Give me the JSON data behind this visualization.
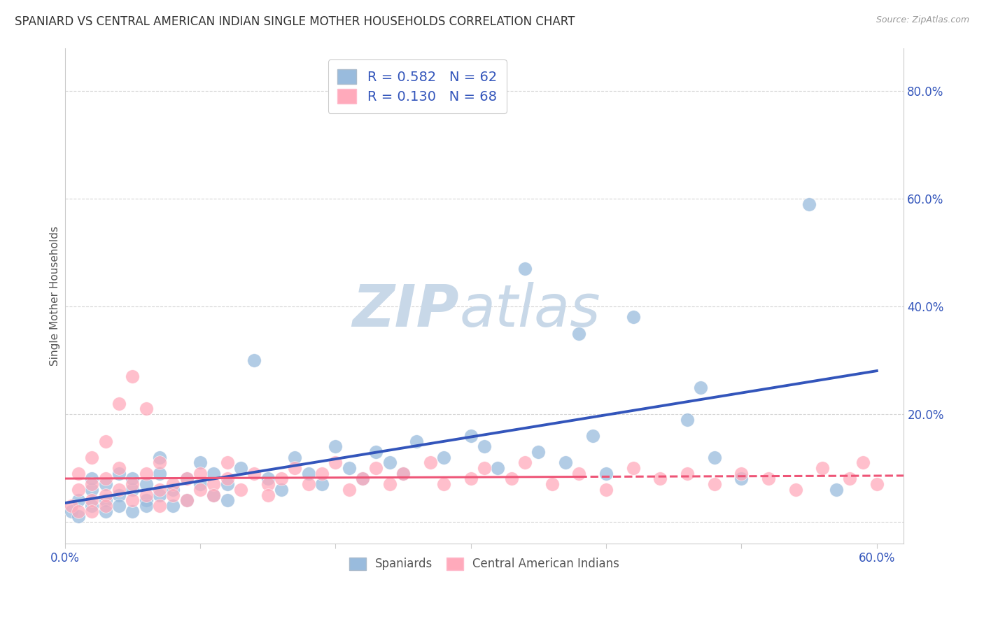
{
  "title": "SPANIARD VS CENTRAL AMERICAN INDIAN SINGLE MOTHER HOUSEHOLDS CORRELATION CHART",
  "source": "Source: ZipAtlas.com",
  "ylabel": "Single Mother Households",
  "xlim": [
    0.0,
    0.62
  ],
  "ylim": [
    -0.04,
    0.88
  ],
  "spaniard_R": 0.582,
  "spaniard_N": 62,
  "central_R": 0.13,
  "central_N": 68,
  "blue_color": "#99BBDD",
  "pink_color": "#FFAABB",
  "blue_line_color": "#3355BB",
  "pink_line_color": "#EE5577",
  "blue_text_color": "#3355BB",
  "background_color": "#FFFFFF",
  "watermark_color": "#C8D8E8",
  "grid_color": "#CCCCCC",
  "spaniard_scatter": [
    [
      0.005,
      0.02
    ],
    [
      0.01,
      0.04
    ],
    [
      0.01,
      0.01
    ],
    [
      0.02,
      0.06
    ],
    [
      0.02,
      0.03
    ],
    [
      0.02,
      0.08
    ],
    [
      0.03,
      0.04
    ],
    [
      0.03,
      0.07
    ],
    [
      0.03,
      0.02
    ],
    [
      0.04,
      0.05
    ],
    [
      0.04,
      0.09
    ],
    [
      0.04,
      0.03
    ],
    [
      0.05,
      0.06
    ],
    [
      0.05,
      0.02
    ],
    [
      0.05,
      0.08
    ],
    [
      0.06,
      0.04
    ],
    [
      0.06,
      0.07
    ],
    [
      0.06,
      0.03
    ],
    [
      0.07,
      0.05
    ],
    [
      0.07,
      0.09
    ],
    [
      0.07,
      0.12
    ],
    [
      0.08,
      0.06
    ],
    [
      0.08,
      0.03
    ],
    [
      0.09,
      0.08
    ],
    [
      0.09,
      0.04
    ],
    [
      0.1,
      0.07
    ],
    [
      0.1,
      0.11
    ],
    [
      0.11,
      0.05
    ],
    [
      0.11,
      0.09
    ],
    [
      0.12,
      0.07
    ],
    [
      0.12,
      0.04
    ],
    [
      0.13,
      0.1
    ],
    [
      0.14,
      0.3
    ],
    [
      0.15,
      0.08
    ],
    [
      0.16,
      0.06
    ],
    [
      0.17,
      0.12
    ],
    [
      0.18,
      0.09
    ],
    [
      0.19,
      0.07
    ],
    [
      0.2,
      0.14
    ],
    [
      0.21,
      0.1
    ],
    [
      0.22,
      0.08
    ],
    [
      0.23,
      0.13
    ],
    [
      0.24,
      0.11
    ],
    [
      0.25,
      0.09
    ],
    [
      0.26,
      0.15
    ],
    [
      0.28,
      0.12
    ],
    [
      0.3,
      0.16
    ],
    [
      0.31,
      0.14
    ],
    [
      0.32,
      0.1
    ],
    [
      0.34,
      0.47
    ],
    [
      0.35,
      0.13
    ],
    [
      0.37,
      0.11
    ],
    [
      0.38,
      0.35
    ],
    [
      0.39,
      0.16
    ],
    [
      0.4,
      0.09
    ],
    [
      0.42,
      0.38
    ],
    [
      0.46,
      0.19
    ],
    [
      0.47,
      0.25
    ],
    [
      0.48,
      0.12
    ],
    [
      0.5,
      0.08
    ],
    [
      0.55,
      0.59
    ],
    [
      0.57,
      0.06
    ]
  ],
  "central_scatter": [
    [
      0.005,
      0.03
    ],
    [
      0.01,
      0.06
    ],
    [
      0.01,
      0.02
    ],
    [
      0.01,
      0.09
    ],
    [
      0.02,
      0.04
    ],
    [
      0.02,
      0.07
    ],
    [
      0.02,
      0.12
    ],
    [
      0.02,
      0.02
    ],
    [
      0.03,
      0.05
    ],
    [
      0.03,
      0.08
    ],
    [
      0.03,
      0.15
    ],
    [
      0.03,
      0.03
    ],
    [
      0.04,
      0.06
    ],
    [
      0.04,
      0.1
    ],
    [
      0.04,
      0.22
    ],
    [
      0.05,
      0.04
    ],
    [
      0.05,
      0.07
    ],
    [
      0.05,
      0.27
    ],
    [
      0.06,
      0.05
    ],
    [
      0.06,
      0.09
    ],
    [
      0.06,
      0.21
    ],
    [
      0.07,
      0.06
    ],
    [
      0.07,
      0.11
    ],
    [
      0.07,
      0.03
    ],
    [
      0.08,
      0.07
    ],
    [
      0.08,
      0.05
    ],
    [
      0.09,
      0.08
    ],
    [
      0.09,
      0.04
    ],
    [
      0.1,
      0.09
    ],
    [
      0.1,
      0.06
    ],
    [
      0.11,
      0.07
    ],
    [
      0.11,
      0.05
    ],
    [
      0.12,
      0.08
    ],
    [
      0.12,
      0.11
    ],
    [
      0.13,
      0.06
    ],
    [
      0.14,
      0.09
    ],
    [
      0.15,
      0.07
    ],
    [
      0.15,
      0.05
    ],
    [
      0.16,
      0.08
    ],
    [
      0.17,
      0.1
    ],
    [
      0.18,
      0.07
    ],
    [
      0.19,
      0.09
    ],
    [
      0.2,
      0.11
    ],
    [
      0.21,
      0.06
    ],
    [
      0.22,
      0.08
    ],
    [
      0.23,
      0.1
    ],
    [
      0.24,
      0.07
    ],
    [
      0.25,
      0.09
    ],
    [
      0.27,
      0.11
    ],
    [
      0.28,
      0.07
    ],
    [
      0.3,
      0.08
    ],
    [
      0.31,
      0.1
    ],
    [
      0.33,
      0.08
    ],
    [
      0.34,
      0.11
    ],
    [
      0.36,
      0.07
    ],
    [
      0.38,
      0.09
    ],
    [
      0.4,
      0.06
    ],
    [
      0.42,
      0.1
    ],
    [
      0.44,
      0.08
    ],
    [
      0.46,
      0.09
    ],
    [
      0.48,
      0.07
    ],
    [
      0.5,
      0.09
    ],
    [
      0.52,
      0.08
    ],
    [
      0.54,
      0.06
    ],
    [
      0.56,
      0.1
    ],
    [
      0.58,
      0.08
    ],
    [
      0.59,
      0.11
    ],
    [
      0.6,
      0.07
    ]
  ],
  "ytick_values": [
    0.0,
    0.2,
    0.4,
    0.6,
    0.8
  ],
  "ytick_labels": [
    "",
    "20.0%",
    "40.0%",
    "60.0%",
    "80.0%"
  ],
  "legend_items": [
    "Spaniards",
    "Central American Indians"
  ]
}
